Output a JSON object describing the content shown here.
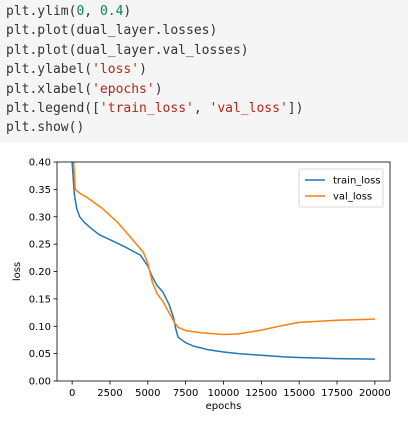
{
  "code_cell": {
    "lines": [
      [
        {
          "t": "plt.ylim("
        },
        {
          "t": "0",
          "c": "num"
        },
        {
          "t": ", "
        },
        {
          "t": "0.4",
          "c": "num"
        },
        {
          "t": ")"
        }
      ],
      [
        {
          "t": "plt.plot(dual_layer.losses)"
        }
      ],
      [
        {
          "t": "plt.plot(dual_layer.val_losses)"
        }
      ],
      [
        {
          "t": "plt.ylabel("
        },
        {
          "t": "'loss'",
          "c": "str"
        },
        {
          "t": ")"
        }
      ],
      [
        {
          "t": "plt.xlabel("
        },
        {
          "t": "'epochs'",
          "c": "str"
        },
        {
          "t": ")"
        }
      ],
      [
        {
          "t": "plt.legend(["
        },
        {
          "t": "'train_loss'",
          "c": "str"
        },
        {
          "t": ", "
        },
        {
          "t": "'val_loss'",
          "c": "str"
        },
        {
          "t": "])"
        }
      ],
      [
        {
          "t": "plt.show()"
        }
      ]
    ]
  },
  "chart_data": {
    "type": "line",
    "xlabel": "epochs",
    "ylabel": "loss",
    "xlim": [
      -1000,
      21000
    ],
    "ylim": [
      0,
      0.4
    ],
    "xticks": [
      0,
      2500,
      5000,
      7500,
      10000,
      12500,
      15000,
      17500,
      20000
    ],
    "yticks": [
      0.0,
      0.05,
      0.1,
      0.15,
      0.2,
      0.25,
      0.3,
      0.35,
      0.4
    ],
    "ytick_labels": [
      "0.00",
      "0.05",
      "0.10",
      "0.15",
      "0.20",
      "0.25",
      "0.30",
      "0.35",
      "0.40"
    ],
    "grid": false,
    "legend": "top-right",
    "colors": {
      "train_loss": "#1f77b4",
      "val_loss": "#ff7f0e"
    },
    "series": [
      {
        "name": "train_loss",
        "x": [
          0,
          150,
          300,
          500,
          800,
          1200,
          1800,
          2500,
          3500,
          4500,
          5000,
          5300,
          5600,
          6000,
          6400,
          6700,
          6850,
          7000,
          7500,
          8000,
          9000,
          10000,
          11000,
          12500,
          14000,
          15000,
          17500,
          20000
        ],
        "y": [
          0.4,
          0.34,
          0.315,
          0.3,
          0.29,
          0.28,
          0.267,
          0.258,
          0.245,
          0.23,
          0.21,
          0.19,
          0.175,
          0.162,
          0.14,
          0.115,
          0.095,
          0.08,
          0.07,
          0.064,
          0.057,
          0.053,
          0.05,
          0.047,
          0.044,
          0.043,
          0.041,
          0.04
        ]
      },
      {
        "name": "val_loss",
        "x": [
          100,
          200,
          500,
          1000,
          2000,
          3000,
          4000,
          4700,
          5000,
          5300,
          5600,
          6000,
          6500,
          6800,
          7000,
          7500,
          8500,
          10000,
          11000,
          12500,
          14000,
          15000,
          17500,
          20000
        ],
        "y": [
          0.4,
          0.35,
          0.343,
          0.335,
          0.315,
          0.29,
          0.258,
          0.235,
          0.215,
          0.18,
          0.16,
          0.145,
          0.12,
          0.105,
          0.098,
          0.092,
          0.088,
          0.085,
          0.086,
          0.093,
          0.102,
          0.107,
          0.111,
          0.113
        ]
      }
    ]
  }
}
